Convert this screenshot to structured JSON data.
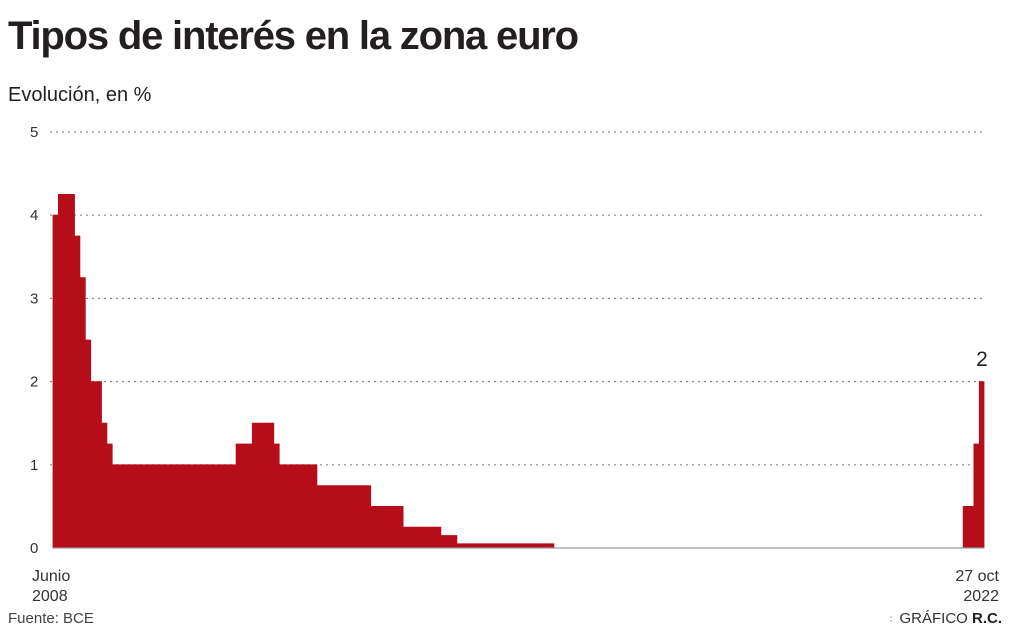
{
  "header": {
    "title": "Tipos de interés en la zona euro",
    "subtitle": "Evolución, en %"
  },
  "footer": {
    "source": "Fuente: BCE",
    "credit_prefix": "GRÁFICO",
    "credit_initials": "R.C."
  },
  "colors": {
    "series": "#b50d1a",
    "grid": "#8a8a8a",
    "axis": "#999999"
  },
  "chart_data": {
    "type": "area",
    "title": "Tipos de interés en la zona euro",
    "subtitle": "Evolución, en %",
    "ylim": [
      0,
      5
    ],
    "yticks": [
      0,
      1,
      2,
      3,
      4,
      5
    ],
    "grid": true,
    "x_start_label": [
      "Junio",
      "2008"
    ],
    "x_end_label": [
      "27 oct",
      "2022"
    ],
    "end_value_label": "2",
    "series": [
      {
        "step": true,
        "points": [
          [
            "2008-06",
            4.0
          ],
          [
            "2008-07",
            4.25
          ],
          [
            "2008-10",
            3.75
          ],
          [
            "2008-11",
            3.25
          ],
          [
            "2008-12",
            2.5
          ],
          [
            "2009-01",
            2.0
          ],
          [
            "2009-03",
            1.5
          ],
          [
            "2009-04",
            1.25
          ],
          [
            "2009-05",
            1.0
          ],
          [
            "2011-04",
            1.25
          ],
          [
            "2011-07",
            1.5
          ],
          [
            "2011-11",
            1.25
          ],
          [
            "2011-12",
            1.0
          ],
          [
            "2012-07",
            0.75
          ],
          [
            "2013-05",
            0.5
          ],
          [
            "2013-11",
            0.25
          ],
          [
            "2014-06",
            0.15
          ],
          [
            "2014-09",
            0.05
          ],
          [
            "2016-03",
            0.0
          ],
          [
            "2022-07",
            0.5
          ],
          [
            "2022-09",
            1.25
          ],
          [
            "2022-10",
            2.0
          ]
        ]
      }
    ]
  }
}
